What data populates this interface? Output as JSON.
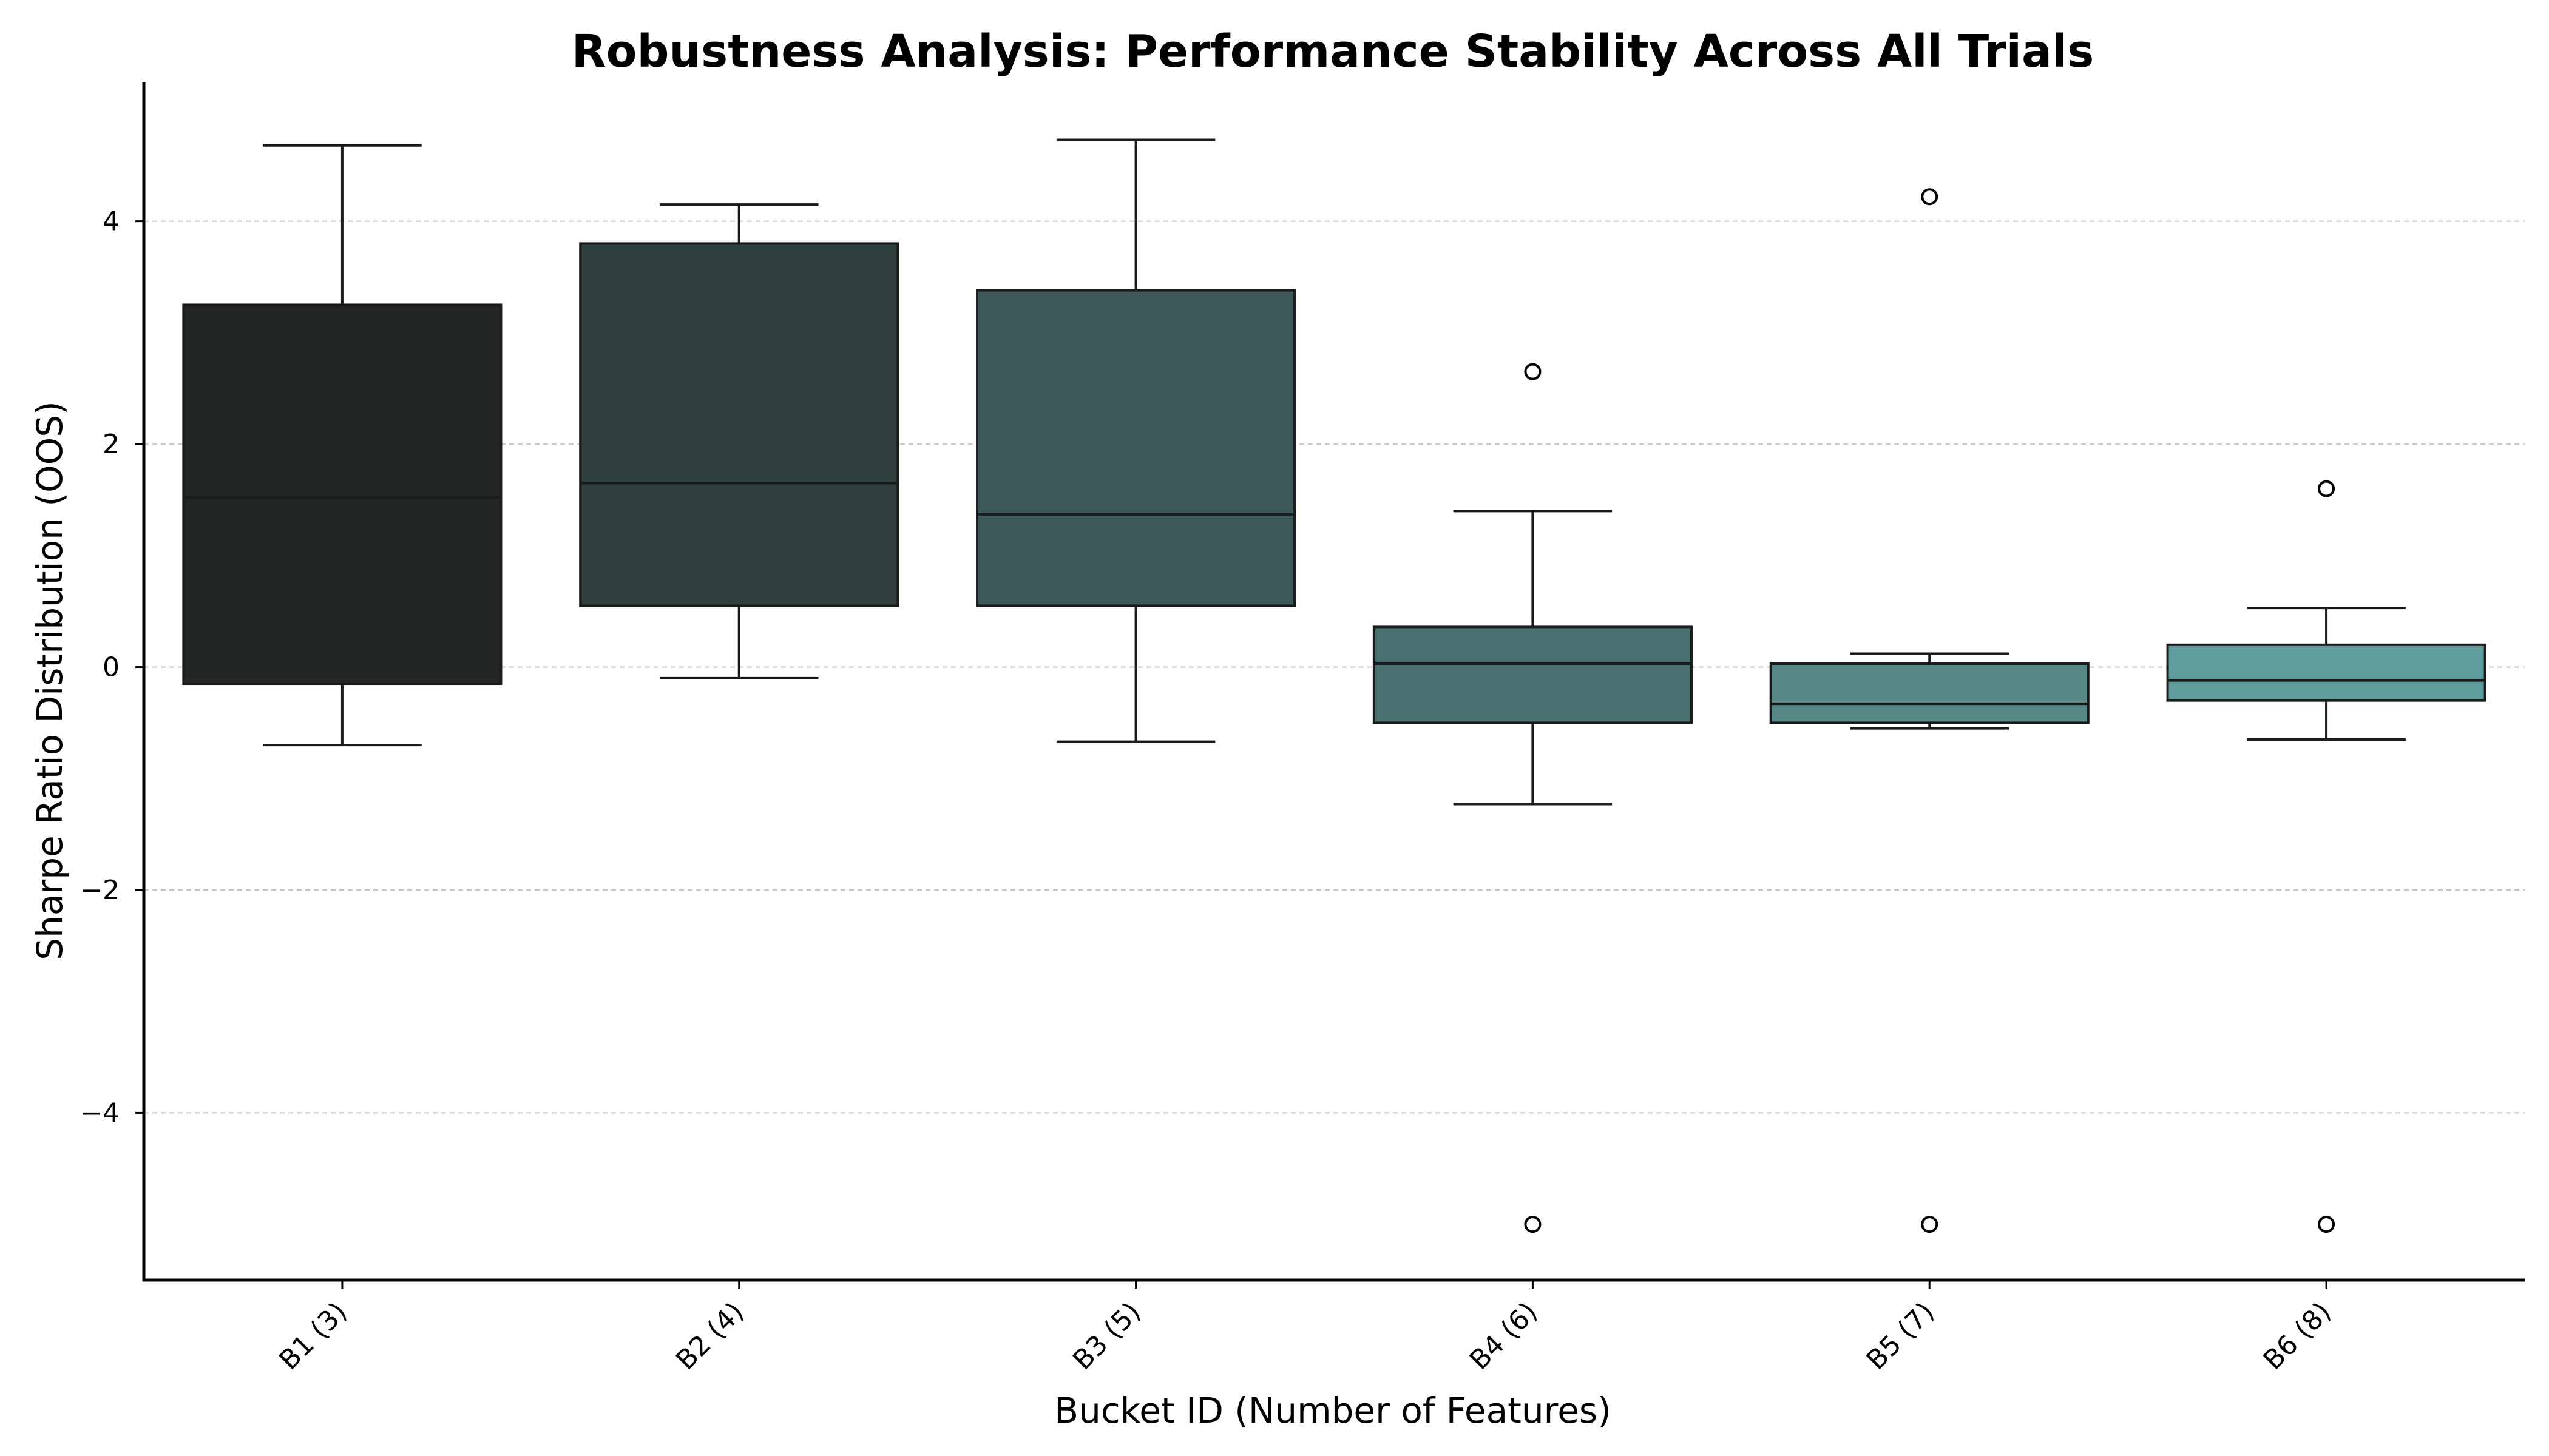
{
  "chart_data": {
    "type": "box",
    "title": "Robustness Analysis: Performance Stability Across All Trials",
    "xlabel": "Bucket ID (Number of Features)",
    "ylabel": "Sharpe Ratio Distribution (OOS)",
    "ylim": [
      -5.5,
      5.25
    ],
    "yticks": [
      -4,
      -2,
      0,
      2,
      4
    ],
    "grid": "y-dashed",
    "categories": [
      "B1 (3)",
      "B2 (4)",
      "B3 (5)",
      "B4 (6)",
      "B5 (7)",
      "B6 (8)"
    ],
    "boxes": [
      {
        "category": "B1 (3)",
        "whisker_low": -0.7,
        "q1": -0.15,
        "median": 1.52,
        "q3": 3.25,
        "whisker_high": 4.68,
        "outliers": [],
        "color": "#222624"
      },
      {
        "category": "B2 (4)",
        "whisker_low": -0.1,
        "q1": 0.55,
        "median": 1.65,
        "q3": 3.8,
        "whisker_high": 4.15,
        "outliers": [],
        "color": "#2f3e3e"
      },
      {
        "category": "B3 (5)",
        "whisker_low": -0.67,
        "q1": 0.55,
        "median": 1.37,
        "q3": 3.38,
        "whisker_high": 4.73,
        "outliers": [],
        "color": "#3d5959"
      },
      {
        "category": "B4 (6)",
        "whisker_low": -1.23,
        "q1": -0.5,
        "median": 0.03,
        "q3": 0.36,
        "whisker_high": 1.4,
        "outliers": [
          2.65,
          -5.0
        ],
        "color": "#4a7171"
      },
      {
        "category": "B5 (7)",
        "whisker_low": -0.55,
        "q1": -0.5,
        "median": -0.33,
        "q3": 0.03,
        "whisker_high": 0.12,
        "outliers": [
          4.22,
          -5.0
        ],
        "color": "#578787"
      },
      {
        "category": "B6 (8)",
        "whisker_low": -0.65,
        "q1": -0.3,
        "median": -0.12,
        "q3": 0.2,
        "whisker_high": 0.53,
        "outliers": [
          1.6,
          -5.0
        ],
        "color": "#609e9e"
      }
    ]
  }
}
